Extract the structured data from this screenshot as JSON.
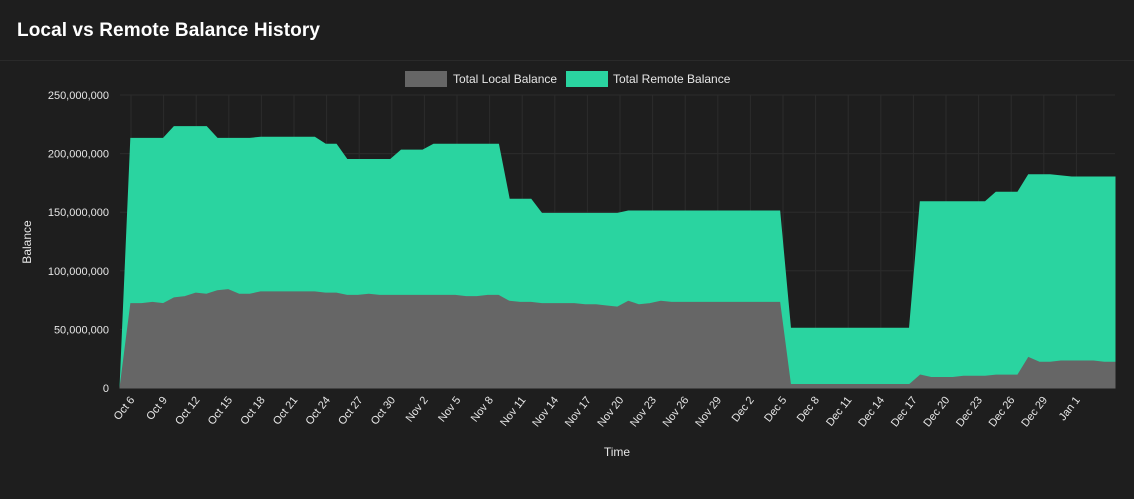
{
  "header": {
    "title": "Local vs Remote Balance History"
  },
  "colors": {
    "local": "#666666",
    "remote": "#2ad4a0",
    "grid": "#2c2c2c",
    "text": "#e6e6e6",
    "background": "#1e1e1e"
  },
  "chart_data": {
    "type": "area",
    "title": "Local vs Remote Balance History",
    "xlabel": "Time",
    "ylabel": "Balance",
    "ylim": [
      0,
      250000000
    ],
    "yticks": [
      0,
      50000000,
      100000000,
      150000000,
      200000000,
      250000000
    ],
    "ytick_labels": [
      "0",
      "50,000,000",
      "100,000,000",
      "150,000,000",
      "200,000,000",
      "250,000,000"
    ],
    "legend_position": "top-center",
    "stacked": true,
    "xtick_labels": [
      "Oct 6",
      "Oct 9",
      "Oct 12",
      "Oct 15",
      "Oct 18",
      "Oct 21",
      "Oct 24",
      "Oct 27",
      "Oct 30",
      "Nov 2",
      "Nov 5",
      "Nov 8",
      "Nov 11",
      "Nov 14",
      "Nov 17",
      "Nov 20",
      "Nov 23",
      "Nov 26",
      "Nov 29",
      "Dec 2",
      "Dec 5",
      "Dec 8",
      "Dec 11",
      "Dec 14",
      "Dec 17",
      "Dec 20",
      "Dec 23",
      "Dec 26",
      "Dec 29",
      "Jan 1"
    ],
    "series": [
      {
        "name": "Total Local Balance",
        "values": [
          0,
          72000000,
          72000000,
          73000000,
          72000000,
          77000000,
          78000000,
          81000000,
          80000000,
          83000000,
          84000000,
          80000000,
          80000000,
          82000000,
          82000000,
          82000000,
          82000000,
          82000000,
          82000000,
          81000000,
          81000000,
          79000000,
          79000000,
          80000000,
          79000000,
          79000000,
          79000000,
          79000000,
          79000000,
          79000000,
          79000000,
          79000000,
          78000000,
          78000000,
          79000000,
          79000000,
          74000000,
          73000000,
          73000000,
          72000000,
          72000000,
          72000000,
          72000000,
          71000000,
          71000000,
          70000000,
          69000000,
          74000000,
          71000000,
          72000000,
          74000000,
          73000000,
          73000000,
          73000000,
          73000000,
          73000000,
          73000000,
          73000000,
          73000000,
          73000000,
          73000000,
          73000000,
          3000000,
          3000000,
          3000000,
          3000000,
          3000000,
          3000000,
          3000000,
          3000000,
          3000000,
          3000000,
          3000000,
          3000000,
          11000000,
          9000000,
          9000000,
          9000000,
          10000000,
          10000000,
          10000000,
          11000000,
          11000000,
          11000000,
          26000000,
          22000000,
          22000000,
          23000000,
          23000000,
          23000000,
          23000000,
          22000000,
          22000000
        ]
      },
      {
        "name": "Total Remote Balance",
        "values": [
          0,
          141000000,
          141000000,
          140000000,
          141000000,
          146000000,
          145000000,
          142000000,
          143000000,
          130000000,
          129000000,
          133000000,
          133000000,
          132000000,
          132000000,
          132000000,
          132000000,
          132000000,
          132000000,
          127000000,
          127000000,
          116000000,
          116000000,
          115000000,
          116000000,
          116000000,
          124000000,
          124000000,
          124000000,
          129000000,
          129000000,
          129000000,
          130000000,
          130000000,
          129000000,
          129000000,
          87000000,
          88000000,
          88000000,
          77000000,
          77000000,
          77000000,
          77000000,
          78000000,
          78000000,
          79000000,
          80000000,
          77000000,
          80000000,
          79000000,
          77000000,
          78000000,
          78000000,
          78000000,
          78000000,
          78000000,
          78000000,
          78000000,
          78000000,
          78000000,
          78000000,
          78000000,
          48000000,
          48000000,
          48000000,
          48000000,
          48000000,
          48000000,
          48000000,
          48000000,
          48000000,
          48000000,
          48000000,
          48000000,
          148000000,
          150000000,
          150000000,
          150000000,
          149000000,
          149000000,
          149000000,
          156000000,
          156000000,
          156000000,
          156000000,
          160000000,
          160000000,
          158000000,
          157000000,
          157000000,
          157000000,
          158000000,
          158000000
        ]
      }
    ]
  }
}
